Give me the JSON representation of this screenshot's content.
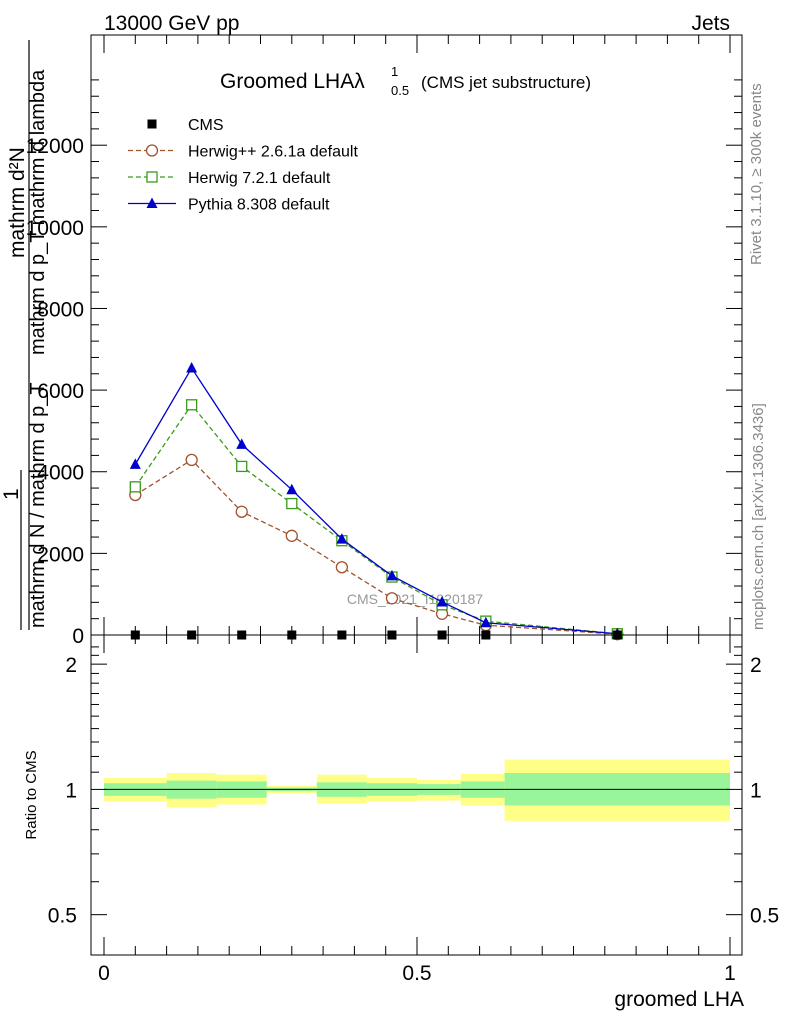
{
  "header": {
    "left": "13000 GeV pp",
    "right": "Jets"
  },
  "side_labels": {
    "rivet": "Rivet 3.1.10, ≥ 300k events",
    "mcplots": "mcplots.cern.ch [arXiv:1306.3436]"
  },
  "watermark": "CMS_2021_I1920187",
  "chart_data": [
    {
      "type": "line",
      "title_main": "Groomed LHAλ",
      "title_sup": "1",
      "title_sub": "0.5",
      "title_note": "(CMS jet substructure)",
      "ylabel_top": "mathrm d²N",
      "ylabel_numer_1": "1",
      "ylabel_bottom": "mathrm d N / mathrm d p_T",
      "ylabel_extra": "mathrm d p_T mathrm d lambda",
      "xlim": [
        0,
        1
      ],
      "ylim": [
        0,
        14700
      ],
      "yticks": [
        0,
        2000,
        4000,
        6000,
        8000,
        10000,
        12000
      ],
      "ytick_labels": [
        "0",
        "2000",
        "4000",
        "6000",
        "8000",
        "10000",
        "12000"
      ],
      "legend_position": "top-left",
      "series": [
        {
          "name": "CMS",
          "color": "#000000",
          "marker": "square-filled",
          "line": "none",
          "x": [
            0.05,
            0.14,
            0.22,
            0.3,
            0.38,
            0.46,
            0.54,
            0.61,
            0.82
          ],
          "values": [
            0,
            0,
            0,
            0,
            0,
            0,
            0,
            0,
            0
          ]
        },
        {
          "name": "Herwig++ 2.6.1a default",
          "color": "#a0522d",
          "marker": "circle-open",
          "line": "dashed",
          "x": [
            0.05,
            0.14,
            0.22,
            0.3,
            0.38,
            0.46,
            0.54,
            0.61,
            0.82
          ],
          "values": [
            3430,
            4290,
            3020,
            2430,
            1660,
            900,
            520,
            240,
            20
          ]
        },
        {
          "name": "Herwig 7.2.1 default",
          "color": "#3a9a1a",
          "marker": "square-open",
          "line": "dashed",
          "x": [
            0.05,
            0.14,
            0.22,
            0.3,
            0.38,
            0.46,
            0.54,
            0.61,
            0.82
          ],
          "values": [
            3630,
            5640,
            4130,
            3220,
            2310,
            1420,
            740,
            340,
            30
          ]
        },
        {
          "name": "Pythia 8.308 default",
          "color": "#0000cc",
          "marker": "triangle-filled",
          "line": "solid",
          "x": [
            0.05,
            0.14,
            0.22,
            0.3,
            0.38,
            0.46,
            0.54,
            0.61,
            0.82
          ],
          "values": [
            4180,
            6540,
            4670,
            3560,
            2350,
            1450,
            810,
            300,
            30
          ]
        }
      ]
    },
    {
      "type": "area",
      "ylabel": "Ratio to CMS",
      "xlabel": "groomed LHA",
      "xlim": [
        0,
        1
      ],
      "ylim": [
        0.4,
        2.35
      ],
      "yscale": "log",
      "yticks": [
        0.5,
        1,
        2
      ],
      "ytick_labels": [
        "0.5",
        "1",
        "2"
      ],
      "xticks": [
        0,
        0.5,
        1
      ],
      "xtick_labels": [
        "0",
        "0.5",
        "1"
      ],
      "reference_line": 1,
      "bands": [
        {
          "x0": 0.0,
          "x1": 0.1,
          "inner": [
            0.965,
            1.035
          ],
          "outer": [
            0.935,
            1.065
          ]
        },
        {
          "x0": 0.1,
          "x1": 0.18,
          "inner": [
            0.95,
            1.05
          ],
          "outer": [
            0.905,
            1.095
          ]
        },
        {
          "x0": 0.18,
          "x1": 0.26,
          "inner": [
            0.955,
            1.045
          ],
          "outer": [
            0.92,
            1.085
          ]
        },
        {
          "x0": 0.26,
          "x1": 0.34,
          "inner": [
            0.99,
            1.01
          ],
          "outer": [
            0.98,
            1.02
          ]
        },
        {
          "x0": 0.34,
          "x1": 0.42,
          "inner": [
            0.96,
            1.04
          ],
          "outer": [
            0.925,
            1.085
          ]
        },
        {
          "x0": 0.42,
          "x1": 0.5,
          "inner": [
            0.965,
            1.035
          ],
          "outer": [
            0.935,
            1.065
          ]
        },
        {
          "x0": 0.5,
          "x1": 0.57,
          "inner": [
            0.97,
            1.03
          ],
          "outer": [
            0.94,
            1.055
          ]
        },
        {
          "x0": 0.57,
          "x1": 0.64,
          "inner": [
            0.955,
            1.045
          ],
          "outer": [
            0.915,
            1.09
          ]
        },
        {
          "x0": 0.64,
          "x1": 1.0,
          "inner": [
            0.915,
            1.095
          ],
          "outer": [
            0.84,
            1.18
          ]
        }
      ]
    }
  ]
}
